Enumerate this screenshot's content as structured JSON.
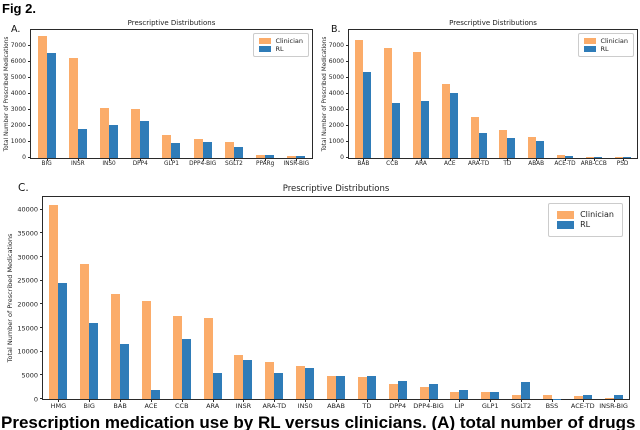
{
  "figure": {
    "label": "Fig 2.",
    "caption": "Prescription medication use by RL versus clinicians. (A) total number of drugs"
  },
  "colors": {
    "clinician": "#FBAC6A",
    "rl": "#2F7CB8"
  },
  "chart_data": [
    {
      "panel": "A.",
      "type": "bar",
      "title": "Prescriptive Distributions",
      "ylabel": "Total Number of Prescribed Medications",
      "xlabel": "",
      "ylim": [
        0,
        8000
      ],
      "yticks": [
        0,
        1000,
        2000,
        3000,
        4000,
        5000,
        6000,
        7000
      ],
      "grid": false,
      "legend": {
        "position": "upper right",
        "entries": [
          "Clinician",
          "RL"
        ]
      },
      "categories": [
        "BIG",
        "INSR",
        "INS0",
        "DPP4",
        "GLP1",
        "DPP4-BIG",
        "SGLT2",
        "PPARg",
        "INSR-BIG"
      ],
      "series": [
        {
          "name": "Clinician",
          "values": [
            7600,
            6250,
            3100,
            3050,
            1450,
            1200,
            1000,
            160,
            150
          ]
        },
        {
          "name": "RL",
          "values": [
            6550,
            1800,
            2050,
            2320,
            950,
            1000,
            690,
            170,
            100
          ]
        }
      ]
    },
    {
      "panel": "B.",
      "type": "bar",
      "title": "Prescriptive Distributions",
      "ylabel": "Total Number of Prescribed Medications",
      "xlabel": "",
      "ylim": [
        0,
        8000
      ],
      "yticks": [
        0,
        1000,
        2000,
        3000,
        4000,
        5000,
        6000,
        7000
      ],
      "grid": false,
      "legend": {
        "position": "upper right",
        "entries": [
          "Clinician",
          "RL"
        ]
      },
      "categories": [
        "BAB",
        "CCB",
        "ARA",
        "ACE",
        "ARA-TD",
        "TD",
        "ABAB",
        "ACE-TD",
        "ARB-CCB",
        "PSD"
      ],
      "series": [
        {
          "name": "Clinician",
          "values": [
            7400,
            6900,
            6600,
            4620,
            2550,
            1720,
            1340,
            210,
            90,
            80
          ]
        },
        {
          "name": "RL",
          "values": [
            5400,
            3420,
            3580,
            4050,
            1550,
            1250,
            1090,
            95,
            45,
            45
          ]
        }
      ]
    },
    {
      "panel": "C.",
      "type": "bar",
      "title": "Prescriptive Distributions",
      "ylabel": "Total Number of Prescribed Medications",
      "xlabel": "",
      "ylim": [
        0,
        42700
      ],
      "yticks": [
        0,
        5000,
        10000,
        15000,
        20000,
        25000,
        30000,
        35000,
        40000
      ],
      "grid": false,
      "legend": {
        "position": "upper right",
        "entries": [
          "Clinician",
          "RL"
        ]
      },
      "categories": [
        "HMG",
        "BIG",
        "BAB",
        "ACE",
        "CCB",
        "ARA",
        "INSR",
        "ARA-TD",
        "INS0",
        "ABAB",
        "TD",
        "DPP4",
        "DPP4-BIG",
        "LIP",
        "GLP1",
        "SGLT2",
        "BSS",
        "ACE-TD",
        "INSR-BIG"
      ],
      "series": [
        {
          "name": "Clinician",
          "values": [
            41000,
            28500,
            22100,
            20700,
            17600,
            17100,
            9300,
            7800,
            6900,
            4850,
            4700,
            3200,
            2500,
            1450,
            1400,
            800,
            800,
            560,
            150
          ]
        },
        {
          "name": "RL",
          "values": [
            24500,
            16100,
            11700,
            1850,
            12700,
            5400,
            8300,
            5600,
            6600,
            4900,
            4800,
            3900,
            3100,
            2000,
            1450,
            3640,
            50,
            770,
            760
          ]
        }
      ]
    }
  ]
}
